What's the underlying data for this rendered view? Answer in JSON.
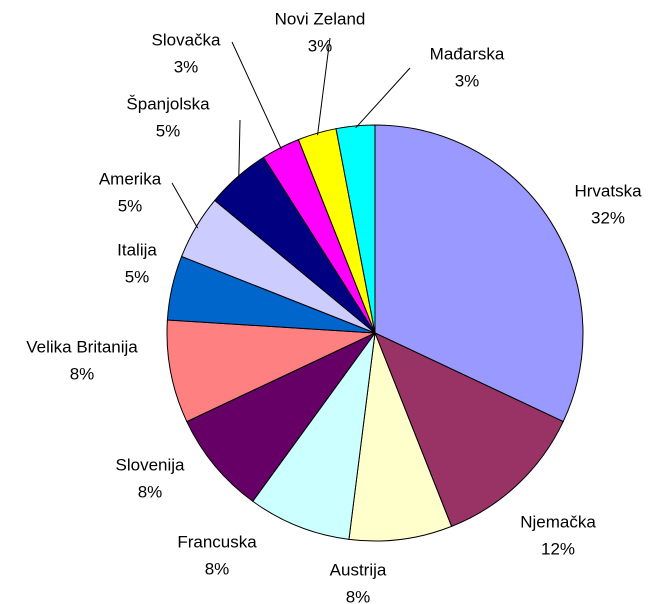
{
  "chart_data": {
    "type": "pie",
    "categories": [
      "Hrvatska",
      "Njemačka",
      "Austrija",
      "Francuska",
      "Slovenija",
      "Velika Britanija",
      "Italija",
      "Amerika",
      "Španjolska",
      "Slovačka",
      "Novi Zeland",
      "Mađarska"
    ],
    "values": [
      32,
      12,
      8,
      8,
      8,
      8,
      5,
      5,
      5,
      3,
      3,
      3
    ],
    "value_labels": [
      "32%",
      "12%",
      "8%",
      "8%",
      "8%",
      "8%",
      "5%",
      "5%",
      "5%",
      "3%",
      "3%",
      "3%"
    ],
    "colors": [
      "#9999ff",
      "#993366",
      "#ffffcc",
      "#ccffff",
      "#660066",
      "#ff8080",
      "#0066cc",
      "#ccccff",
      "#000080",
      "#ff00ff",
      "#ffff00",
      "#00ffff"
    ]
  }
}
